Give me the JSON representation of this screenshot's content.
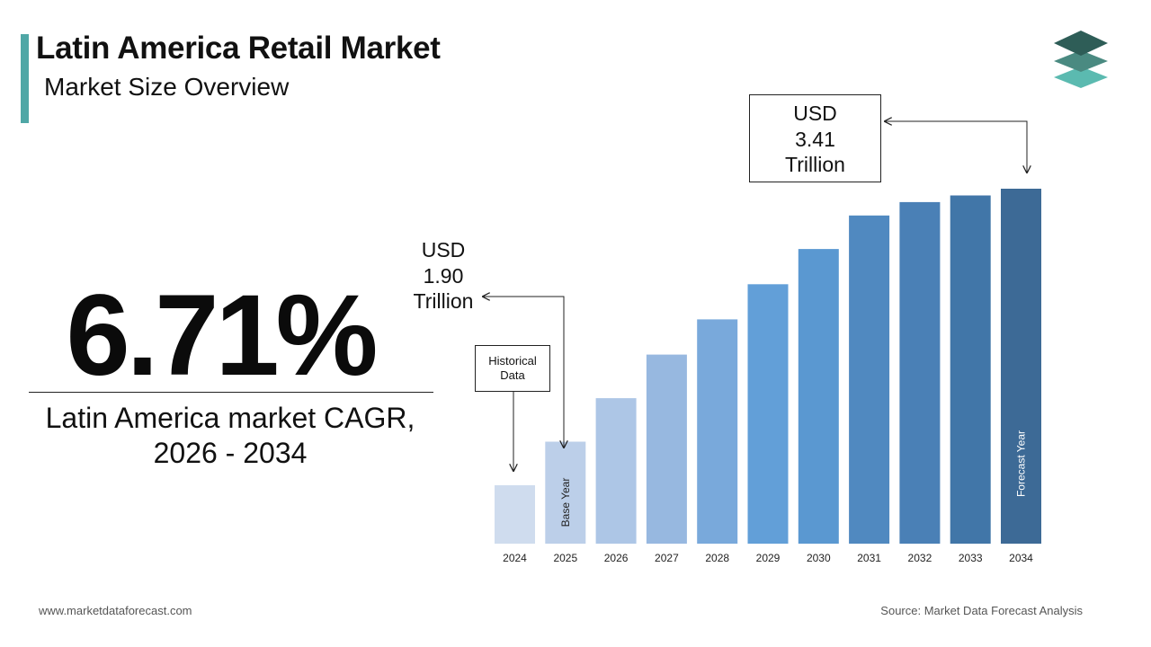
{
  "header": {
    "title": "Latin America Retail Market",
    "subtitle": "Market Size Overview"
  },
  "logo": {
    "icon": "stacked-layers-logo-icon",
    "colors": [
      "#2e5d57",
      "#4a8a81",
      "#5bbab0"
    ]
  },
  "cagr": {
    "value": "6.71%",
    "label_line1": "Latin America market CAGR,",
    "label_line2": "2026 - 2034"
  },
  "callouts": {
    "end_value": {
      "line1": "USD",
      "line2": "3.41",
      "line3": "Trillion"
    },
    "base_value": {
      "line1": "USD",
      "line2": "1.90",
      "line3": "Trillion"
    },
    "historical": {
      "line1": "Historical",
      "line2": "Data"
    }
  },
  "chart_data": {
    "type": "bar",
    "categories": [
      "2024",
      "2025",
      "2026",
      "2027",
      "2028",
      "2029",
      "2030",
      "2031",
      "2032",
      "2033",
      "2034"
    ],
    "values": [
      1.64,
      1.9,
      2.16,
      2.42,
      2.63,
      2.84,
      3.05,
      3.25,
      3.33,
      3.37,
      3.41
    ],
    "bar_labels": {
      "1": "Base Year",
      "10": "Forecast Year"
    },
    "colors": [
      "#cfdcee",
      "#bccfe9",
      "#adc6e6",
      "#97b8e0",
      "#79a9db",
      "#629fd8",
      "#5a98d1",
      "#5089c0",
      "#4a80b6",
      "#4176a8",
      "#3d6a96"
    ],
    "title": "",
    "xlabel": "",
    "ylabel": "",
    "grid": false,
    "legend": "none"
  },
  "footer": {
    "website": "www.marketdataforecast.com",
    "source": "Source: Market Data Forecast Analysis"
  }
}
